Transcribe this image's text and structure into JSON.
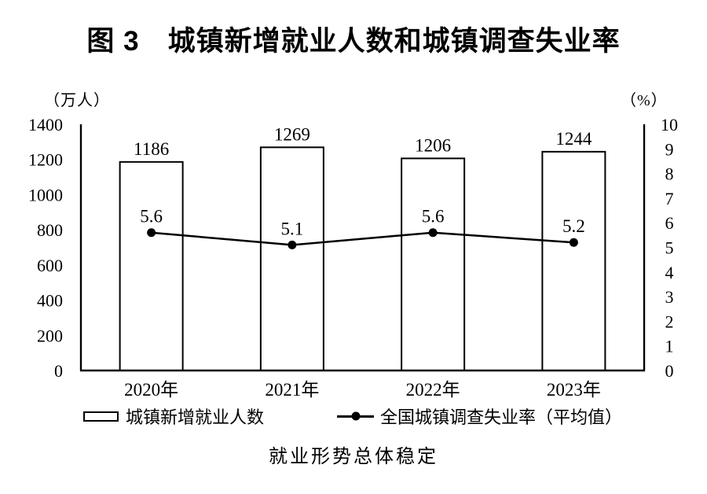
{
  "title": "图 3　城镇新增就业人数和城镇调查失业率",
  "caption": "就业形势总体稳定",
  "chart_data": {
    "type": "bar",
    "subtype": "bar+line dual-axis combo",
    "title": "图 3　城镇新增就业人数和城镇调查失业率",
    "categories": [
      "2020年",
      "2021年",
      "2022年",
      "2023年"
    ],
    "series": [
      {
        "name": "城镇新增就业人数",
        "type": "bar",
        "axis": "left",
        "values": [
          1186,
          1269,
          1206,
          1244
        ]
      },
      {
        "name": "全国城镇调查失业率（平均值）",
        "type": "line",
        "axis": "right",
        "values": [
          5.6,
          5.1,
          5.6,
          5.2
        ]
      }
    ],
    "left_axis": {
      "label": "（万人）",
      "min": 0,
      "max": 1400,
      "ticks": [
        0,
        200,
        400,
        600,
        800,
        1000,
        1200,
        1400
      ]
    },
    "right_axis": {
      "label": "（%）",
      "min": 0,
      "max": 10,
      "ticks": [
        0,
        1,
        2,
        3,
        4,
        5,
        6,
        7,
        8,
        9,
        10
      ]
    },
    "grid": false,
    "data_labels_shown": true,
    "legend_position": "bottom",
    "colors": {
      "background": "#ffffff",
      "bar_fill": "#ffffff",
      "bar_border": "#000000",
      "line": "#000000",
      "text": "#000000"
    }
  }
}
